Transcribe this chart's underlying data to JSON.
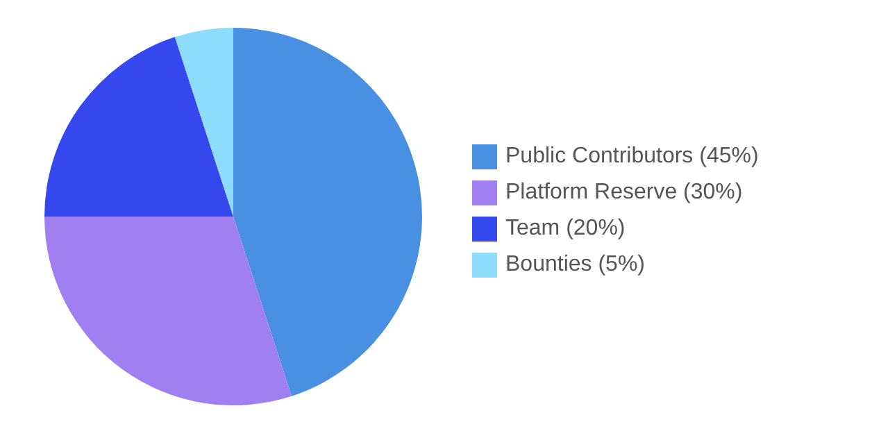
{
  "chart_data": {
    "type": "pie",
    "categories": [
      "Public Contributors (45%)",
      "Platform Reserve (30%)",
      "Team (20%)",
      "Bounties (5%)"
    ],
    "values": [
      45,
      30,
      20,
      5
    ],
    "colors": [
      "#4a90e2",
      "#a07ff0",
      "#3448ee",
      "#8edcfb"
    ],
    "legend": "right"
  }
}
